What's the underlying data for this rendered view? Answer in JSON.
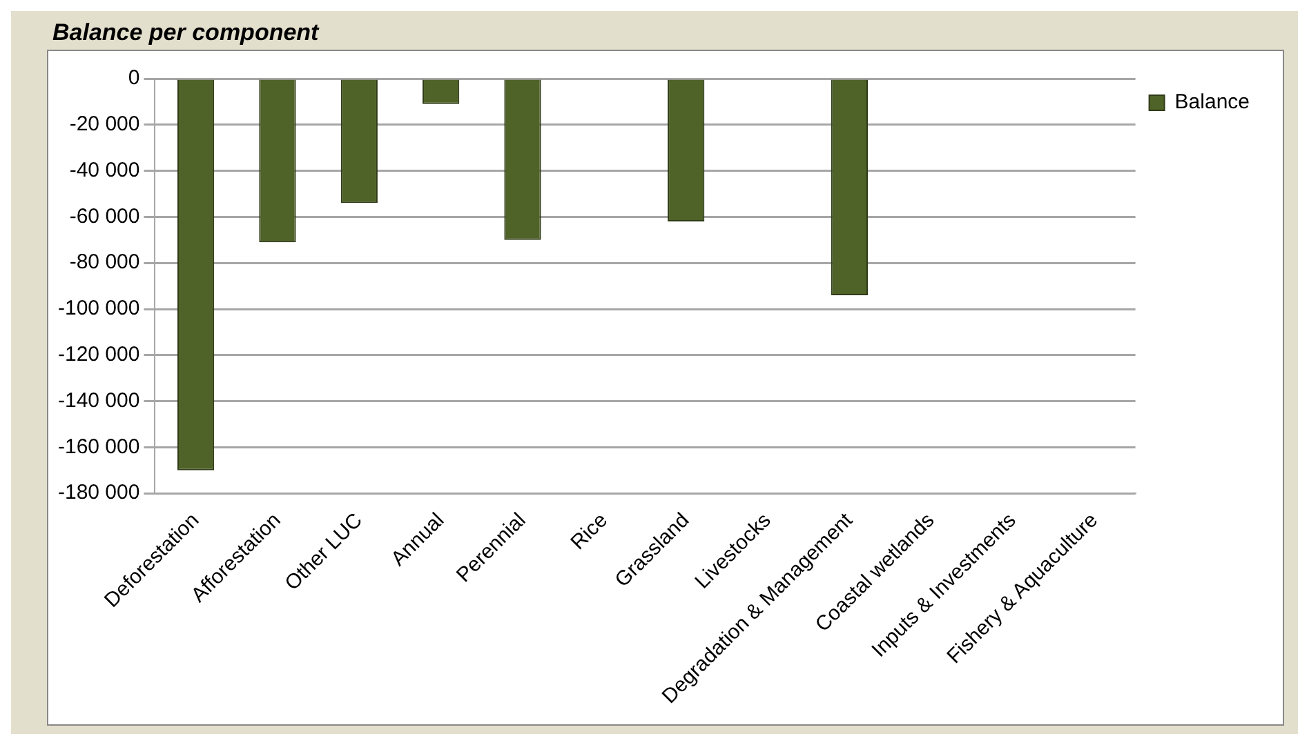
{
  "chart_data": {
    "type": "bar",
    "title": "Balance per component",
    "categories": [
      "Deforestation",
      "Afforestation",
      "Other LUC",
      "Annual",
      "Perennial",
      "Rice",
      "Grassland",
      "Livestocks",
      "Degradation & Management",
      "Coastal wetlands",
      "Inputs & Investments",
      "Fishery & Aquaculture"
    ],
    "series": [
      {
        "name": "Balance",
        "color": "#4f6228",
        "values": [
          -170000,
          -71000,
          -54000,
          -11000,
          -70000,
          0,
          -62000,
          0,
          -94000,
          0,
          0,
          0
        ]
      }
    ],
    "ylim": [
      -180000,
      0
    ],
    "yticks": [
      -180000,
      -160000,
      -140000,
      -120000,
      -100000,
      -80000,
      -60000,
      -40000,
      -20000,
      0
    ],
    "grid": "y",
    "legend": "right"
  }
}
